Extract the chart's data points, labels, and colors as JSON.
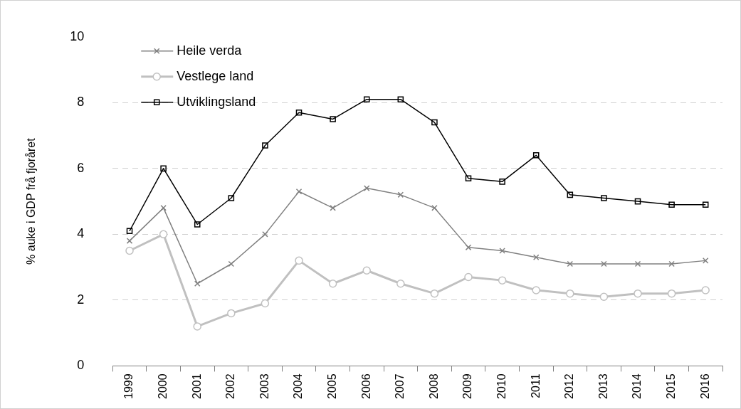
{
  "chart_data": {
    "type": "line",
    "ylabel": "% auke i GDP frå fjoråret",
    "categories": [
      "1999",
      "2000",
      "2001",
      "2002",
      "2003",
      "2004",
      "2005",
      "2006",
      "2007",
      "2008",
      "2009",
      "2010",
      "2011",
      "2012",
      "2013",
      "2014",
      "2015",
      "2016"
    ],
    "series": [
      {
        "name": "Heile verda",
        "color": "#808080",
        "marker": "cross",
        "values": [
          3.8,
          4.8,
          2.5,
          3.1,
          4.0,
          5.3,
          4.8,
          5.4,
          5.2,
          4.8,
          3.6,
          3.5,
          3.3,
          3.1,
          3.1,
          3.1,
          3.1,
          3.2
        ]
      },
      {
        "name": "Vestlege land",
        "color": "#c0c0c0",
        "marker": "circle",
        "values": [
          3.5,
          4.0,
          1.2,
          1.6,
          1.9,
          3.2,
          2.5,
          2.9,
          2.5,
          2.2,
          2.7,
          2.6,
          2.3,
          2.2,
          2.1,
          2.2,
          2.2,
          2.3
        ]
      },
      {
        "name": "Utviklingsland",
        "color": "#000000",
        "marker": "square",
        "values": [
          4.1,
          6.0,
          4.3,
          5.1,
          6.7,
          7.7,
          7.5,
          8.1,
          8.1,
          7.4,
          5.7,
          5.6,
          6.4,
          5.2,
          5.1,
          5.0,
          4.9,
          4.9
        ]
      }
    ],
    "ylim": [
      0,
      10
    ],
    "yticks": [
      0,
      2,
      4,
      6,
      8,
      10
    ],
    "grid": "y",
    "legend": "top left",
    "line_style": "solid"
  }
}
